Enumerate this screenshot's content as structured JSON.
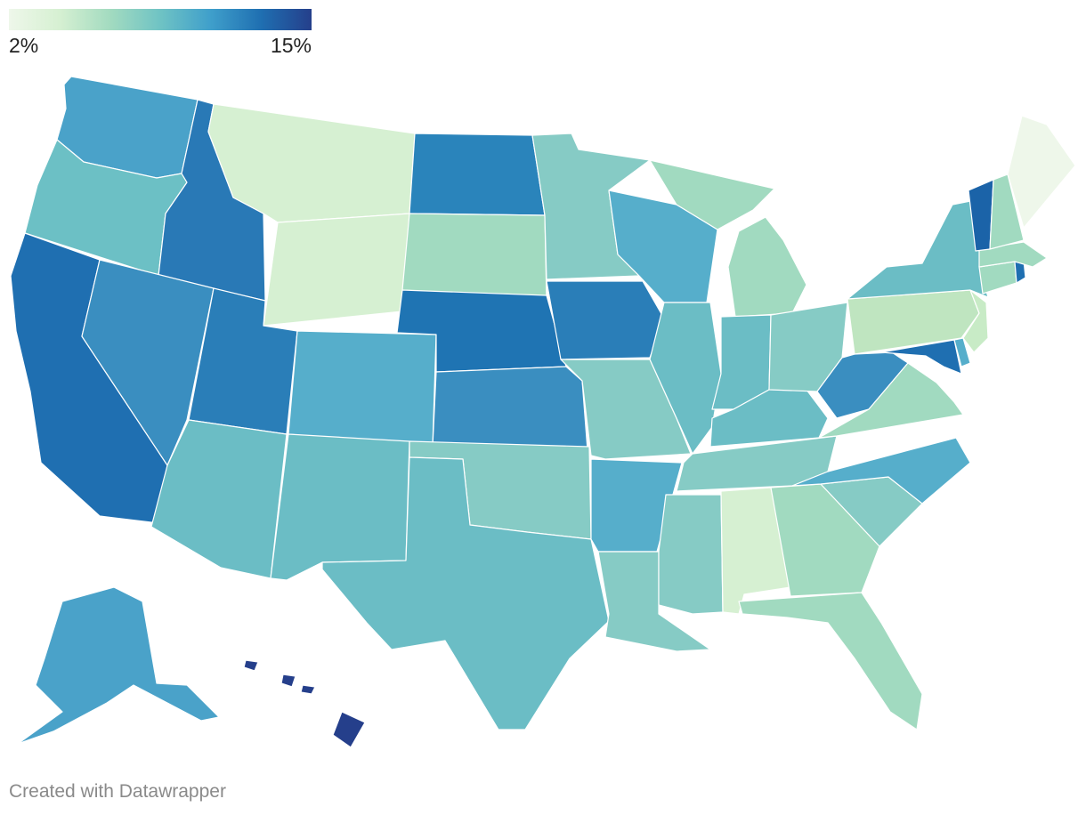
{
  "legend": {
    "min_label": "2%",
    "max_label": "15%",
    "min_value": 2,
    "max_value": 15,
    "colors": [
      "#eef7ea",
      "#d6f0d2",
      "#a3dbc0",
      "#6fc3c4",
      "#3f9fcb",
      "#1f6fb1",
      "#253f8b"
    ]
  },
  "credit": "Created with Datawrapper",
  "states": [
    {
      "id": "WA",
      "color": "#4aa2c9"
    },
    {
      "id": "OR",
      "color": "#6cc0c5"
    },
    {
      "id": "CA",
      "color": "#1f6fb1"
    },
    {
      "id": "ID",
      "color": "#2979b6"
    },
    {
      "id": "NV",
      "color": "#3a8ec0"
    },
    {
      "id": "UT",
      "color": "#2a7eb8"
    },
    {
      "id": "AZ",
      "color": "#6bbdc5"
    },
    {
      "id": "MT",
      "color": "#d6f0d2"
    },
    {
      "id": "WY",
      "color": "#d6f0d2"
    },
    {
      "id": "CO",
      "color": "#56aecb"
    },
    {
      "id": "NM",
      "color": "#6bbdc5"
    },
    {
      "id": "ND",
      "color": "#2a84bb"
    },
    {
      "id": "SD",
      "color": "#a1dac0"
    },
    {
      "id": "NE",
      "color": "#1f74b3"
    },
    {
      "id": "KS",
      "color": "#3a8ec0"
    },
    {
      "id": "OK",
      "color": "#86cbc5"
    },
    {
      "id": "TX",
      "color": "#6bbdc5"
    },
    {
      "id": "MN",
      "color": "#86cbc5"
    },
    {
      "id": "IA",
      "color": "#2a7eb8"
    },
    {
      "id": "MO",
      "color": "#86cbc5"
    },
    {
      "id": "AR",
      "color": "#56aecb"
    },
    {
      "id": "LA",
      "color": "#86cbc5"
    },
    {
      "id": "WI",
      "color": "#56aecb"
    },
    {
      "id": "IL",
      "color": "#6bbdc5"
    },
    {
      "id": "MS",
      "color": "#86cbc5"
    },
    {
      "id": "MI",
      "color": "#a1dac0"
    },
    {
      "id": "IN",
      "color": "#6bbdc5"
    },
    {
      "id": "KY",
      "color": "#6bbdc5"
    },
    {
      "id": "TN",
      "color": "#86cbc5"
    },
    {
      "id": "AL",
      "color": "#d6f0d2"
    },
    {
      "id": "OH",
      "color": "#86cbc5"
    },
    {
      "id": "WV",
      "color": "#3a8ec0"
    },
    {
      "id": "GA",
      "color": "#a1dac0"
    },
    {
      "id": "FL",
      "color": "#a1dac0"
    },
    {
      "id": "SC",
      "color": "#86cbc5"
    },
    {
      "id": "NC",
      "color": "#56aecb"
    },
    {
      "id": "VA",
      "color": "#a1dac0"
    },
    {
      "id": "MD",
      "color": "#1f6fb1"
    },
    {
      "id": "DE",
      "color": "#56aecb"
    },
    {
      "id": "PA",
      "color": "#bfe5c0"
    },
    {
      "id": "NJ",
      "color": "#c8ebc6"
    },
    {
      "id": "NY",
      "color": "#6bbdc5"
    },
    {
      "id": "CT",
      "color": "#a1dac0"
    },
    {
      "id": "RI",
      "color": "#1f6fb1"
    },
    {
      "id": "MA",
      "color": "#a1dac0"
    },
    {
      "id": "VT",
      "color": "#1b63a8"
    },
    {
      "id": "NH",
      "color": "#a1dac0"
    },
    {
      "id": "ME",
      "color": "#eef7ea"
    },
    {
      "id": "AK",
      "color": "#4aa2c9"
    },
    {
      "id": "HI",
      "color": "#253f8b"
    }
  ]
}
